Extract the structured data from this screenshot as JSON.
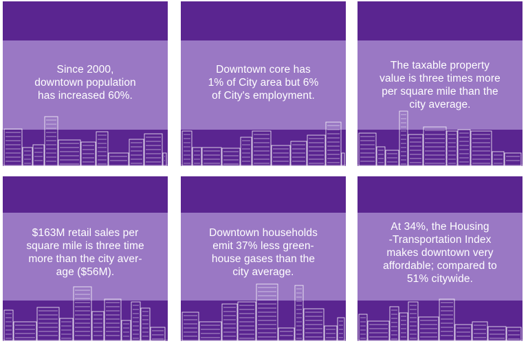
{
  "colors": {
    "card_dark": "#5a2590",
    "band_light": "#9a78c4",
    "text": "#ffffff",
    "skyline_stroke": "#ffffff"
  },
  "cards": [
    {
      "lines": [
        "Since 2000,",
        "downtown population",
        "has increased 60%."
      ]
    },
    {
      "lines": [
        "Downtown core has",
        "1% of City area but 6%",
        "of City's employment."
      ]
    },
    {
      "lines": [
        "The taxable property",
        "value is three times more",
        "per square mile than the",
        "city average."
      ]
    },
    {
      "lines": [
        "$163M retail sales per",
        "square mile is three time",
        "more than the city aver-",
        "age ($56M)."
      ]
    },
    {
      "lines": [
        "Downtown households",
        "emit 37% less green-",
        "house gases than the",
        "city average."
      ]
    },
    {
      "lines": [
        "At 34%, the Housing",
        "-Transportation Index",
        "makes downtown very",
        "affordable; compared to",
        "51% citywide."
      ]
    }
  ],
  "icons": {
    "skyline": "city-skyline-icon"
  }
}
